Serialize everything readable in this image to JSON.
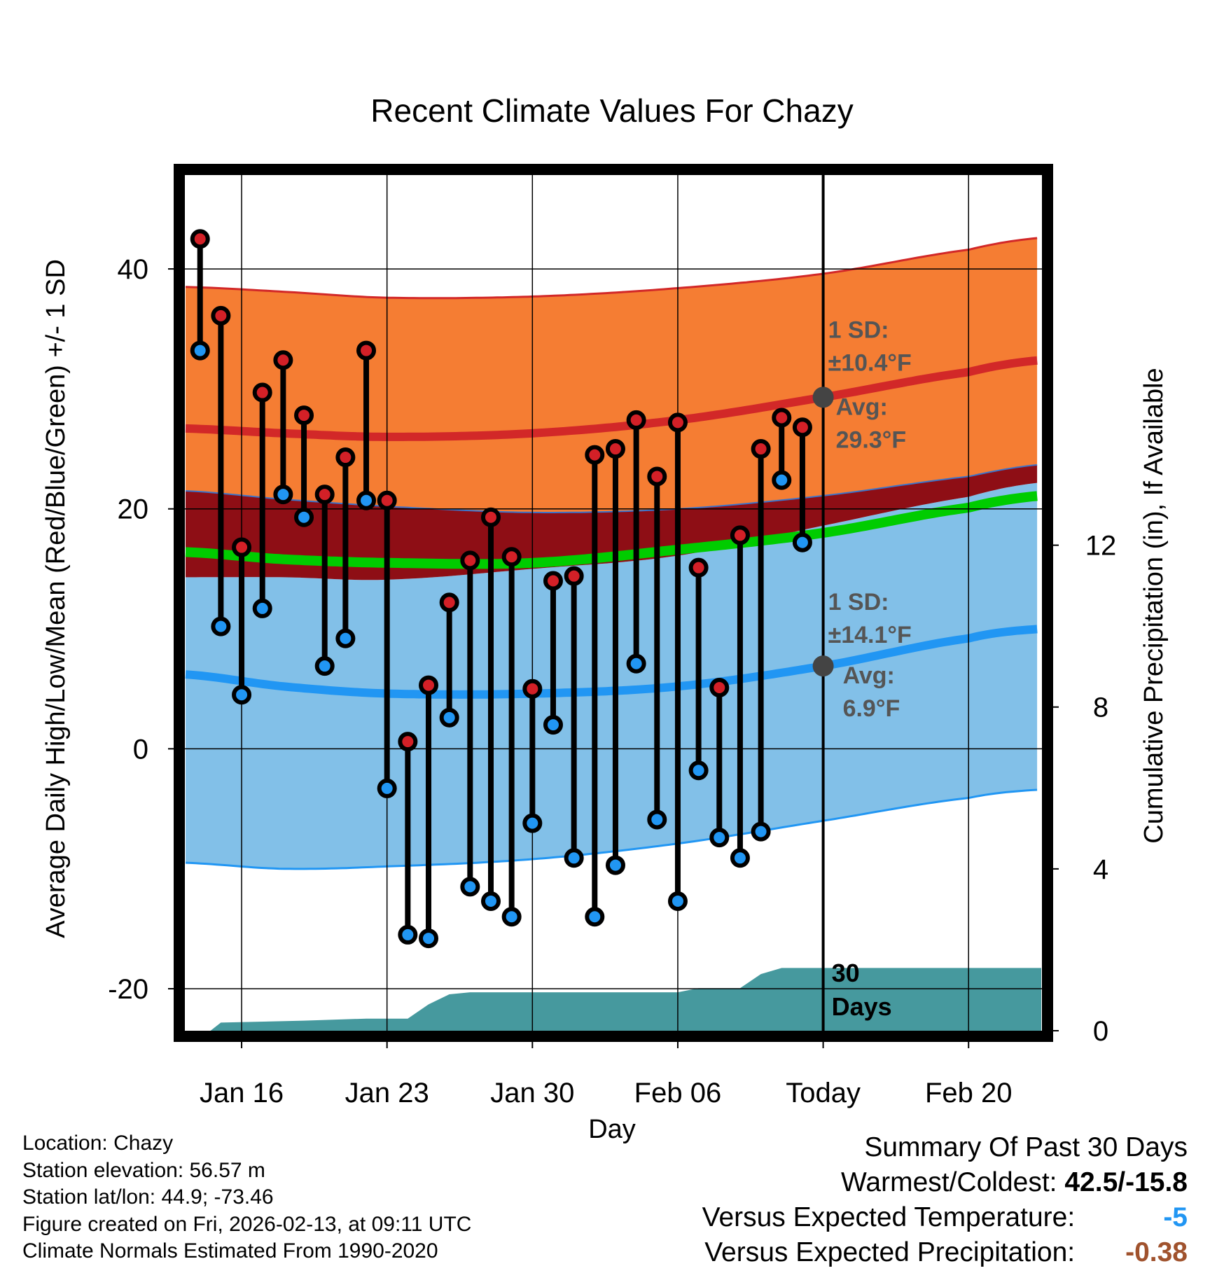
{
  "chart_data": {
    "type": "range-bar",
    "title": "Recent Climate Values For Chazy",
    "xlabel": "Day",
    "ylabel_left": "Average Daily High/Low/Mean (Red/Blue/Green) +/- 1 SD",
    "ylabel_right": "Cumulative Precipitation (in), If Available",
    "x_range": [
      -2.8,
      38.6
    ],
    "ylim_left": [
      -23.5,
      48
    ],
    "ylim_right": [
      0,
      21.2
    ],
    "left_ticks": [
      -20,
      0,
      20,
      40
    ],
    "right_ticks": [
      0,
      4,
      8,
      12
    ],
    "x_ticks": [
      {
        "x": 0,
        "label": "Jan 16"
      },
      {
        "x": 7,
        "label": "Jan 23"
      },
      {
        "x": 14,
        "label": "Jan 30"
      },
      {
        "x": 21,
        "label": "Feb 06"
      },
      {
        "x": 28,
        "label": "Today"
      },
      {
        "x": 35,
        "label": "Feb 20"
      }
    ],
    "today_x": 28,
    "daily": [
      {
        "x": -2,
        "high": 42.5,
        "low": 33.2
      },
      {
        "x": -1,
        "high": 36.1,
        "low": 10.2
      },
      {
        "x": 0,
        "high": 16.8,
        "low": 4.5
      },
      {
        "x": 1,
        "high": 29.7,
        "low": 11.7
      },
      {
        "x": 2,
        "high": 32.4,
        "low": 21.2
      },
      {
        "x": 3,
        "high": 27.8,
        "low": 19.3
      },
      {
        "x": 4,
        "high": 21.2,
        "low": 6.9
      },
      {
        "x": 5,
        "high": 24.3,
        "low": 9.2
      },
      {
        "x": 6,
        "high": 33.2,
        "low": 20.7
      },
      {
        "x": 7,
        "high": 20.7,
        "low": -3.3
      },
      {
        "x": 8,
        "high": 0.6,
        "low": -15.5
      },
      {
        "x": 9,
        "high": 5.3,
        "low": -15.8
      },
      {
        "x": 10,
        "high": 12.2,
        "low": 2.6
      },
      {
        "x": 11,
        "high": 15.7,
        "low": -11.5
      },
      {
        "x": 12,
        "high": 19.3,
        "low": -12.7
      },
      {
        "x": 13,
        "high": 16.0,
        "low": -14.0
      },
      {
        "x": 14,
        "high": 5.0,
        "low": -6.2
      },
      {
        "x": 15,
        "high": 14.0,
        "low": 2.0
      },
      {
        "x": 16,
        "high": 14.4,
        "low": -9.1
      },
      {
        "x": 17,
        "high": 24.5,
        "low": -14.0
      },
      {
        "x": 18,
        "high": 25.0,
        "low": -9.7
      },
      {
        "x": 19,
        "high": 27.4,
        "low": 7.1
      },
      {
        "x": 20,
        "high": 22.7,
        "low": -5.9
      },
      {
        "x": 21,
        "high": 27.2,
        "low": -12.7
      },
      {
        "x": 22,
        "high": 15.1,
        "low": -1.8
      },
      {
        "x": 23,
        "high": 5.1,
        "low": -7.4
      },
      {
        "x": 24,
        "high": 17.8,
        "low": -9.1
      },
      {
        "x": 25,
        "high": 25.0,
        "low": -6.9
      },
      {
        "x": 26,
        "high": 27.6,
        "low": 22.4
      },
      {
        "x": 27,
        "high": 26.8,
        "low": 17.2
      }
    ],
    "normals": {
      "x": [
        -2.7,
        2,
        7,
        14,
        21,
        28,
        35,
        38.5
      ],
      "high_upper": [
        38.5,
        38.1,
        37.6,
        37.7,
        38.4,
        39.6,
        41.6,
        42.6
      ],
      "high_mean": [
        26.7,
        26.3,
        26.0,
        26.3,
        27.4,
        29.3,
        31.4,
        32.4
      ],
      "high_lower": [
        21.5,
        20.8,
        20.2,
        19.7,
        20.0,
        21.1,
        22.7,
        23.7
      ],
      "avg_mean": [
        16.4,
        15.8,
        15.5,
        15.5,
        16.6,
        18.0,
        20.1,
        21.1
      ],
      "low_upper": [
        14.3,
        14.3,
        14.1,
        15.0,
        16.1,
        18.6,
        21.0,
        22.2
      ],
      "low_mean": [
        6.2,
        5.2,
        4.6,
        4.6,
        5.2,
        6.9,
        9.2,
        10.0
      ],
      "low_lower": [
        -9.5,
        -10.0,
        -9.8,
        -9.2,
        -7.9,
        -6.0,
        -4.1,
        -3.4
      ]
    },
    "precip": {
      "x": [
        -2.7,
        -1.5,
        -1.0,
        3.0,
        6.0,
        8.0,
        9.0,
        10.0,
        11.0,
        18.0,
        21.0,
        22.0,
        24.0,
        25.0,
        26.0,
        28.0,
        38.5
      ],
      "cum": [
        0.0,
        0.0,
        0.2,
        0.25,
        0.3,
        0.3,
        0.65,
        0.9,
        0.95,
        0.95,
        0.95,
        1.05,
        1.05,
        1.4,
        1.55,
        1.55,
        1.55
      ]
    },
    "annotations": {
      "high_sd_label": "1 SD:",
      "high_sd_value": "±10.4°F",
      "high_avg_label": "Avg:",
      "high_avg_value": "29.3°F",
      "low_sd_label": "1 SD:",
      "low_sd_value": "±14.1°F",
      "low_avg_label": "Avg:",
      "low_avg_value": "6.9°F",
      "days_count": "30",
      "days_word": "Days"
    },
    "colors": {
      "high_band": "#f57d33",
      "high_line": "#d22828",
      "overlap": "#8e0e15",
      "low_band": "#82c0e8",
      "low_line": "#2196f3",
      "avg_line": "#00cc00",
      "precip": "#46999e",
      "high_dot": "#d32027",
      "low_dot": "#2196f3",
      "marker": "#444444"
    }
  },
  "footer_left": {
    "location": "Location: Chazy",
    "elevation": "Station elevation: 56.57 m",
    "latlon": "Station lat/lon: 44.9; -73.46",
    "created": "Figure created on Fri, 2026-02-13, at 09:11 UTC",
    "normals": "Climate Normals Estimated From 1990-2020"
  },
  "summary": {
    "title": "Summary Of Past 30 Days",
    "warm_label": "Warmest/Coldest:",
    "warm_value": "42.5/-15.8",
    "temp_label": "Versus Expected Temperature:",
    "temp_value": "-5",
    "temp_color": "#2196f3",
    "precip_label": "Versus Expected Precipitation:",
    "precip_value": "-0.38",
    "precip_color": "#a0522d"
  }
}
